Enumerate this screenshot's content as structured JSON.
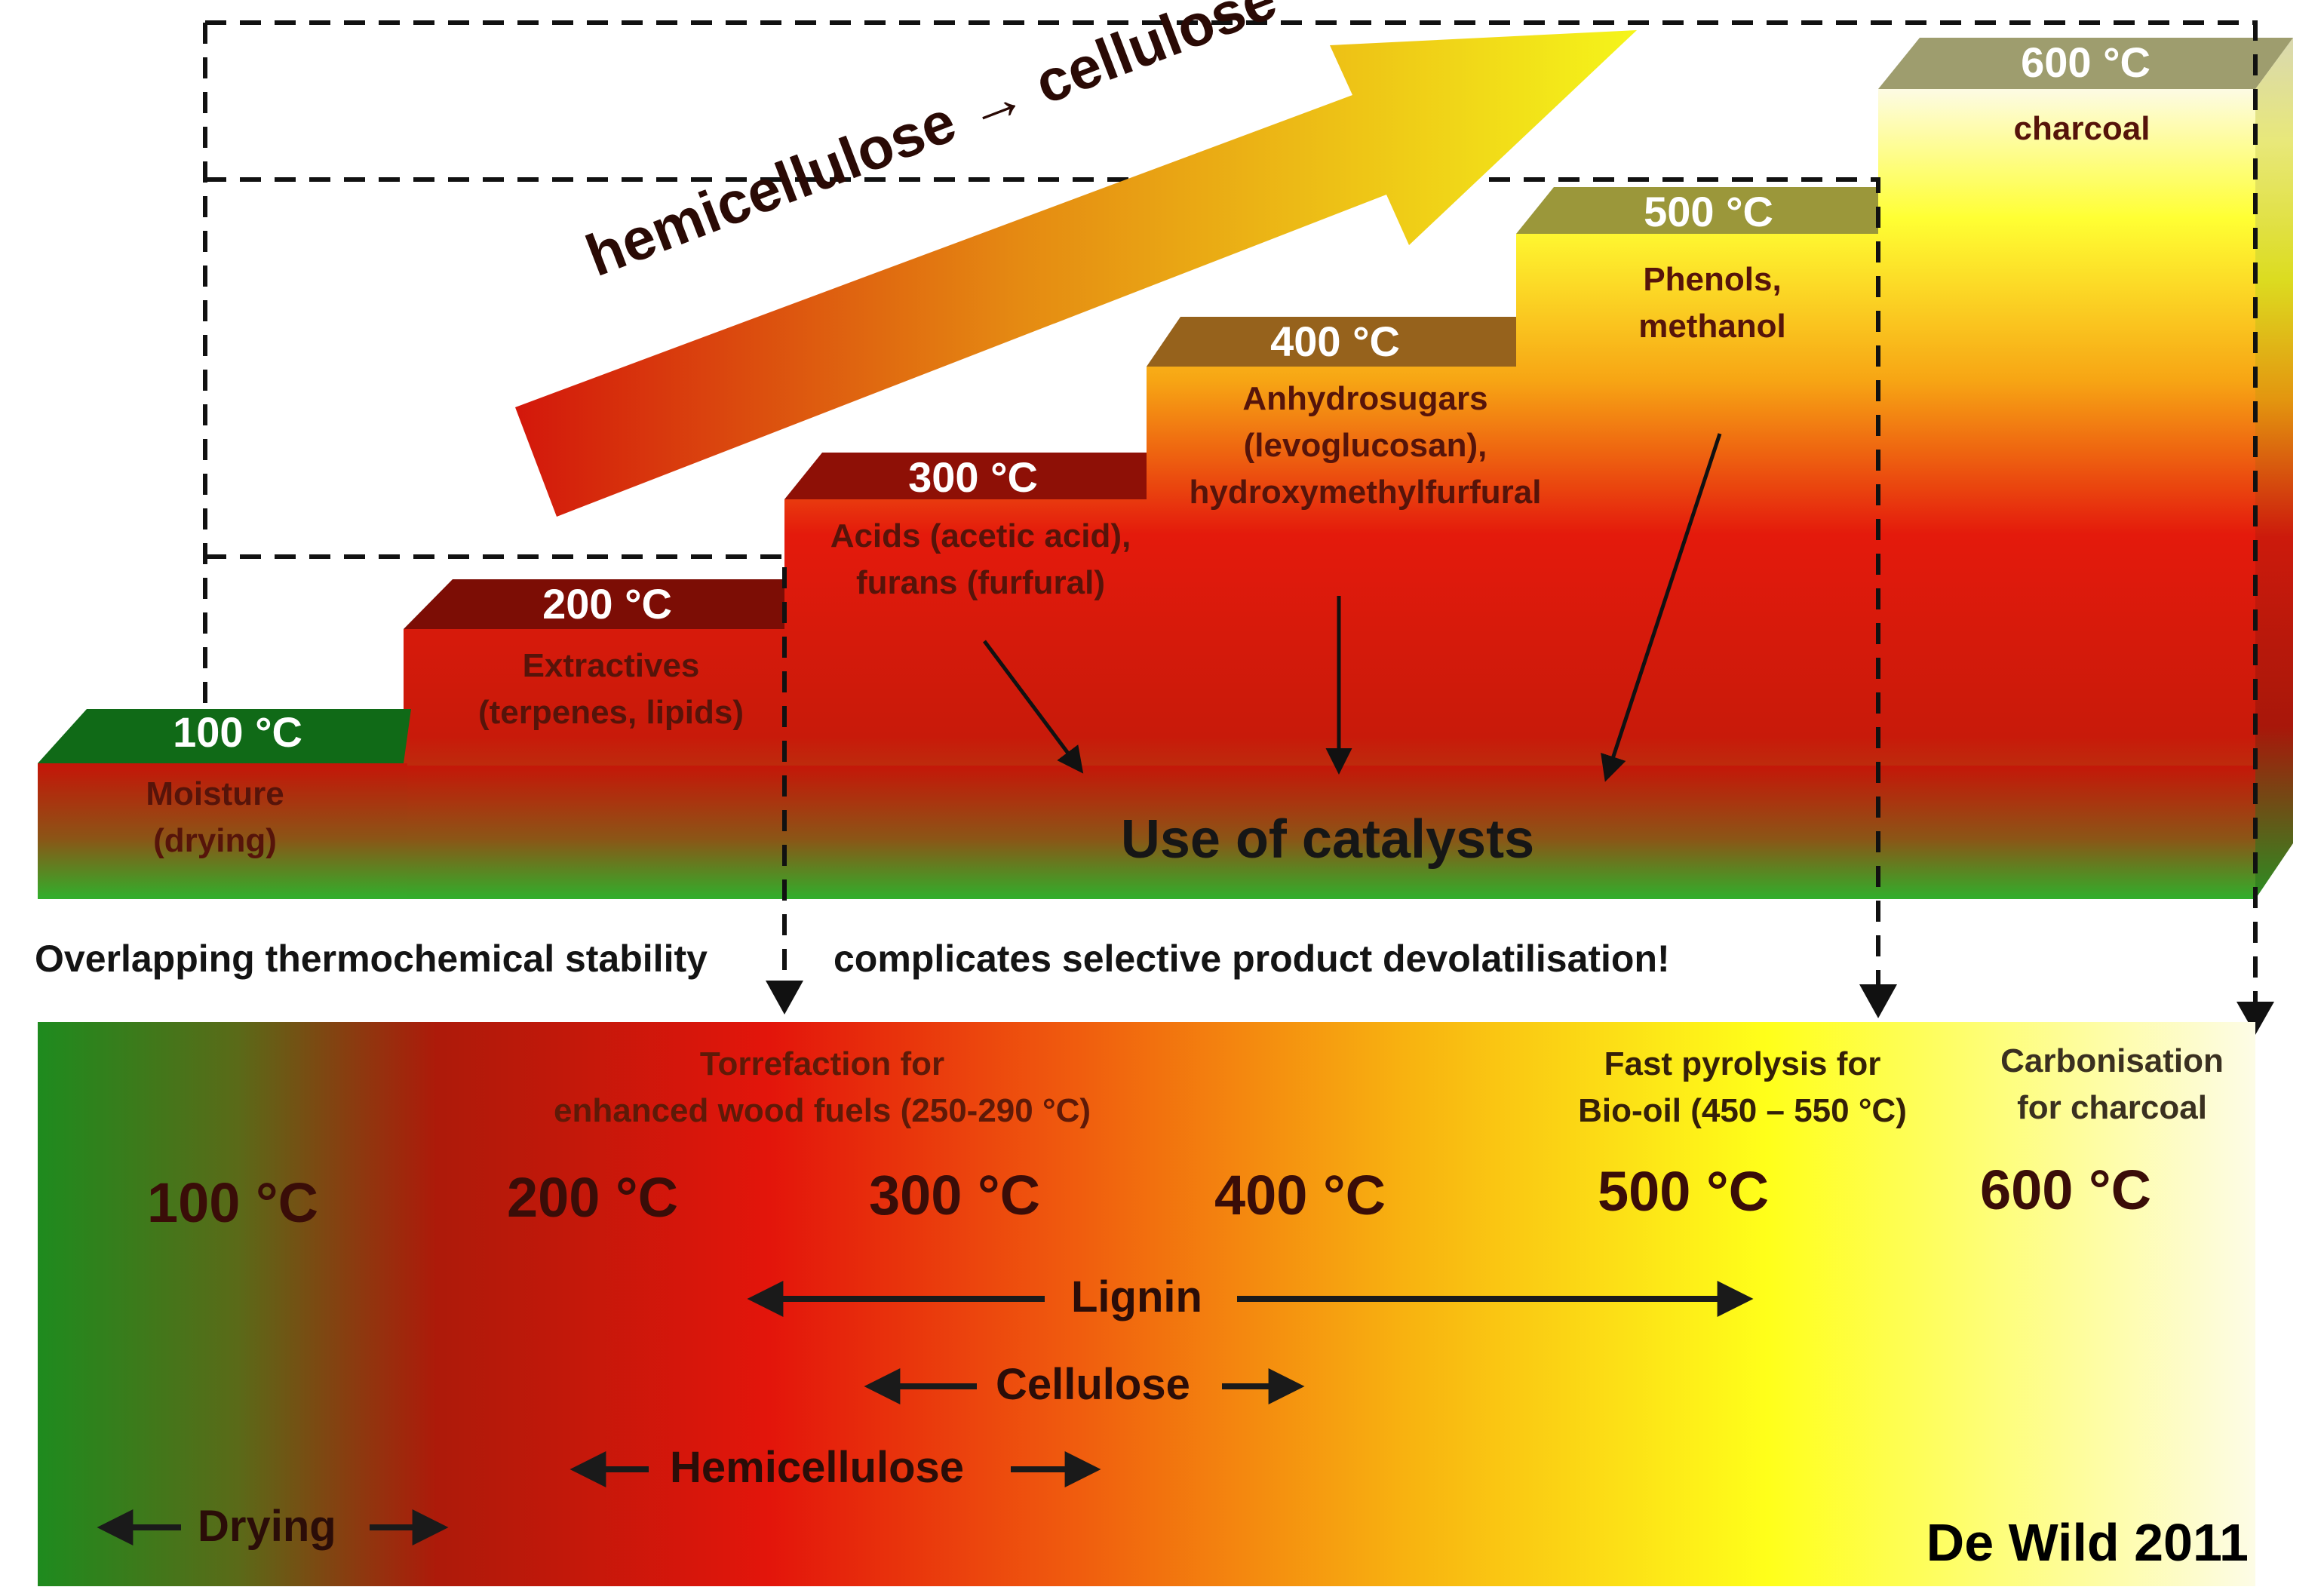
{
  "steps": [
    {
      "temperature": "100 °C",
      "product": [
        "Moisture",
        "(drying)"
      ]
    },
    {
      "temperature": "200 °C",
      "product": [
        "Extractives",
        "(terpenes, lipids)"
      ]
    },
    {
      "temperature": "300 °C",
      "product": [
        "Acids (acetic acid),",
        "furans (furfural)"
      ]
    },
    {
      "temperature": "400 °C",
      "product": [
        "Anhydrosugars",
        "(levoglucosan),",
        "hydroxymethylfurfural"
      ]
    },
    {
      "temperature": "500 °C",
      "product": [
        "Phenols,",
        "methanol"
      ]
    },
    {
      "temperature": "600 °C",
      "product": [
        "charcoal"
      ]
    }
  ],
  "big_arrow_text": "hemicellulose → cellulose → lignin",
  "catalysts_text": "Use of catalysts",
  "warning": {
    "left": "Overlapping thermochemical stability",
    "right": "complicates selective product devolatilisation!"
  },
  "processes": [
    {
      "lines": [
        "Torrefaction for",
        "enhanced wood fuels (250-290 °C)"
      ]
    },
    {
      "lines": [
        "Fast  pyrolysis for",
        "Bio-oil (450 – 550 °C)"
      ]
    },
    {
      "lines": [
        "Carbonisation",
        "for charcoal"
      ]
    }
  ],
  "scale_labels": [
    "100 °C",
    "200 °C",
    "300 °C",
    "400 °C",
    "500 °C",
    "600 °C"
  ],
  "ranges": [
    {
      "label": "Lignin"
    },
    {
      "label": "Cellulose"
    },
    {
      "label": "Hemicellulose"
    },
    {
      "label": "Drying"
    }
  ],
  "credit": "De Wild 2011",
  "colors": {
    "green": "#1f8a1f",
    "dark_green": "#0f5e12",
    "dark_red": "#8c1208",
    "red": "#e31b0e",
    "orange": "#f39c12",
    "yellow": "#ffff1a",
    "cream": "#fdfbe4",
    "brown": "#9b6a1e",
    "olive": "#9c9a3d"
  }
}
